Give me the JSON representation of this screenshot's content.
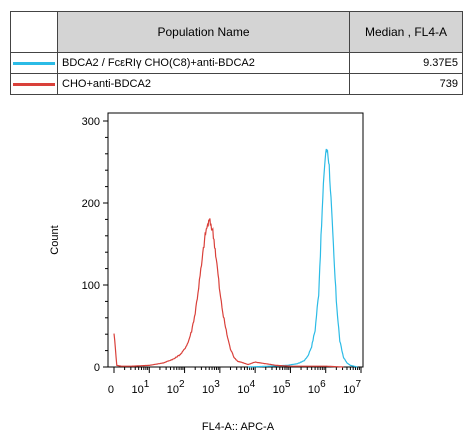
{
  "legend": {
    "header_name": "Population Name",
    "header_value": "Median , FL4-A",
    "rows": [
      {
        "name": "BDCA2 / FcεRIγ CHO(C8)+anti-BDCA2",
        "value": "9.37E5",
        "color": "#2bbbe6"
      },
      {
        "name": "CHO+anti-BDCA2",
        "value": "739",
        "color": "#d9403a"
      }
    ]
  },
  "chart_data": {
    "type": "line",
    "title": "",
    "xlabel": "FL4-A:: APC-A",
    "ylabel": "Count",
    "ylim": [
      0,
      300
    ],
    "xlim_log10": [
      0,
      7
    ],
    "x_scale": "biexponential",
    "yticks": [
      "0",
      "100",
      "200",
      "300"
    ],
    "xticks": [
      {
        "base": "0",
        "exp": ""
      },
      {
        "base": "10",
        "exp": "1"
      },
      {
        "base": "10",
        "exp": "2"
      },
      {
        "base": "10",
        "exp": "3"
      },
      {
        "base": "10",
        "exp": "4"
      },
      {
        "base": "10",
        "exp": "5"
      },
      {
        "base": "10",
        "exp": "6"
      },
      {
        "base": "10",
        "exp": "7"
      }
    ],
    "series": [
      {
        "name": "BDCA2 / FcεRIγ CHO(C8)+anti-BDCA2",
        "color": "#2bbbe6",
        "log10_x": [
          3.8,
          4.4,
          4.9,
          5.2,
          5.4,
          5.5,
          5.6,
          5.7,
          5.8,
          5.85,
          5.9,
          5.95,
          6.0,
          6.05,
          6.1,
          6.15,
          6.2,
          6.25,
          6.3,
          6.35,
          6.4,
          6.5,
          6.6,
          6.7,
          6.8,
          6.9
        ],
        "y": [
          0,
          1,
          2,
          4,
          8,
          14,
          25,
          45,
          90,
          140,
          190,
          235,
          262,
          265,
          245,
          205,
          160,
          120,
          82,
          55,
          32,
          12,
          5,
          2,
          1,
          0
        ]
      },
      {
        "name": "CHO+anti-BDCA2",
        "color": "#d9403a",
        "log10_x": [
          0.0,
          0.08,
          0.2,
          0.5,
          1.0,
          1.4,
          1.7,
          1.9,
          2.0,
          2.1,
          2.2,
          2.3,
          2.4,
          2.5,
          2.55,
          2.6,
          2.65,
          2.7,
          2.75,
          2.8,
          2.85,
          2.9,
          2.95,
          3.0,
          3.1,
          3.2,
          3.3,
          3.4,
          3.5,
          3.6,
          3.8,
          4.0,
          4.3,
          4.6,
          5.0,
          5.5,
          6.0,
          6.5
        ],
        "y": [
          42,
          2,
          1,
          1,
          2,
          5,
          10,
          16,
          22,
          30,
          44,
          66,
          98,
          130,
          150,
          165,
          172,
          178,
          174,
          165,
          150,
          132,
          112,
          90,
          62,
          40,
          22,
          12,
          7,
          6,
          3,
          6,
          4,
          2,
          1,
          1,
          1,
          0
        ]
      }
    ]
  }
}
